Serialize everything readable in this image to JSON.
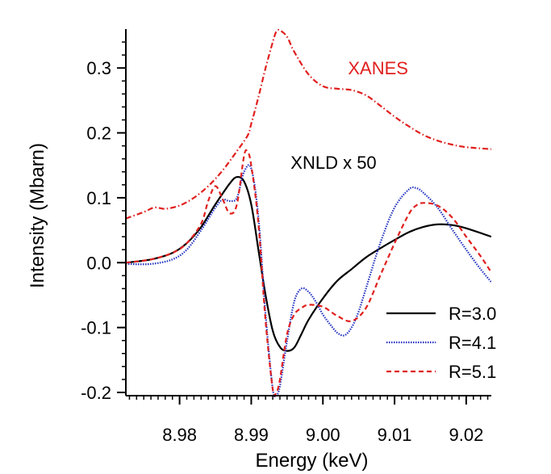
{
  "chart_data": {
    "type": "line",
    "xlabel": "Energy (keV)",
    "ylabel": "Intensity (Mbarn)",
    "xlim": [
      8.9725,
      9.0235
    ],
    "ylim": [
      -0.205,
      0.36
    ],
    "x_ticks": [
      8.98,
      8.99,
      9.0,
      9.01,
      9.02
    ],
    "x_tick_labels": [
      "8.98",
      "8.99",
      "9.00",
      "9.01",
      "9.02"
    ],
    "y_ticks": [
      0.3,
      0.2,
      0.1,
      0.0,
      -0.1,
      -0.2
    ],
    "y_tick_labels": [
      "0.3",
      "0.2",
      "0.1",
      "0.0",
      "-0.1",
      "-0.2"
    ],
    "grid": false,
    "legend_position": "bottom-right",
    "annotations": [
      {
        "text": "XANES",
        "x": 9.0035,
        "y": 0.29,
        "color": "#e0201e"
      },
      {
        "text": "XNLD x 50",
        "x": 8.9955,
        "y": 0.145,
        "color": "#000000"
      }
    ],
    "series": [
      {
        "name": "",
        "color": "#e0201e",
        "dash": "dashdot",
        "x": [
          8.9725,
          8.975,
          8.9765,
          8.978,
          8.98,
          8.982,
          8.984,
          8.986,
          8.988,
          8.9895,
          8.99,
          8.991,
          8.992,
          8.993,
          8.9935,
          8.994,
          8.995,
          8.996,
          8.998,
          9.0,
          9.002,
          9.004,
          9.006,
          9.008,
          9.01,
          9.012,
          9.014,
          9.016,
          9.018,
          9.02,
          9.0235
        ],
        "y": [
          0.068,
          0.078,
          0.085,
          0.083,
          0.088,
          0.1,
          0.118,
          0.142,
          0.172,
          0.196,
          0.214,
          0.255,
          0.3,
          0.34,
          0.356,
          0.358,
          0.348,
          0.325,
          0.29,
          0.272,
          0.268,
          0.266,
          0.258,
          0.242,
          0.225,
          0.21,
          0.197,
          0.188,
          0.182,
          0.178,
          0.175
        ]
      },
      {
        "name": "R=3.0",
        "color": "#000000",
        "dash": "solid",
        "x": [
          8.9725,
          8.976,
          8.979,
          8.981,
          8.983,
          8.985,
          8.987,
          8.988,
          8.989,
          8.99,
          8.991,
          8.992,
          8.993,
          8.994,
          8.995,
          8.996,
          8.997,
          8.998,
          9.0,
          9.002,
          9.004,
          9.006,
          9.008,
          9.01,
          9.012,
          9.014,
          9.016,
          9.018,
          9.02,
          9.0235
        ],
        "y": [
          0.0,
          0.005,
          0.015,
          0.03,
          0.055,
          0.09,
          0.122,
          0.132,
          0.125,
          0.09,
          0.02,
          -0.05,
          -0.105,
          -0.13,
          -0.136,
          -0.131,
          -0.11,
          -0.088,
          -0.055,
          -0.028,
          -0.01,
          0.008,
          0.022,
          0.035,
          0.047,
          0.055,
          0.059,
          0.058,
          0.053,
          0.04
        ]
      },
      {
        "name": "R=4.1",
        "color": "#1f2fbf",
        "dash": "dotted",
        "x": [
          8.9725,
          8.976,
          8.979,
          8.981,
          8.983,
          8.985,
          8.986,
          8.987,
          8.988,
          8.989,
          8.99,
          8.991,
          8.992,
          8.993,
          8.9935,
          8.994,
          8.995,
          8.996,
          8.997,
          8.998,
          8.999,
          9.0,
          9.001,
          9.002,
          9.003,
          9.004,
          9.005,
          9.006,
          9.008,
          9.01,
          9.012,
          9.013,
          9.014,
          9.016,
          9.018,
          9.02,
          9.022,
          9.0235
        ],
        "y": [
          -0.002,
          -0.002,
          0.005,
          0.02,
          0.05,
          0.085,
          0.097,
          0.095,
          0.1,
          0.14,
          0.145,
          0.07,
          -0.08,
          -0.195,
          -0.203,
          -0.19,
          -0.12,
          -0.06,
          -0.04,
          -0.045,
          -0.06,
          -0.08,
          -0.095,
          -0.108,
          -0.112,
          -0.1,
          -0.075,
          -0.04,
          0.03,
          0.085,
          0.113,
          0.115,
          0.108,
          0.085,
          0.052,
          0.02,
          -0.01,
          -0.03
        ]
      },
      {
        "name": "R=5.1",
        "color": "#e0201e",
        "dash": "dashed",
        "x": [
          8.9725,
          8.976,
          8.979,
          8.981,
          8.983,
          8.984,
          8.985,
          8.986,
          8.987,
          8.988,
          8.989,
          8.9895,
          8.99,
          8.991,
          8.992,
          8.993,
          8.9935,
          8.994,
          8.995,
          8.996,
          8.997,
          8.998,
          9.0,
          9.002,
          9.004,
          9.006,
          9.008,
          9.01,
          9.012,
          9.013,
          9.014,
          9.016,
          9.018,
          9.02,
          9.022,
          9.0235
        ],
        "y": [
          0.0,
          0.005,
          0.015,
          0.03,
          0.06,
          0.095,
          0.118,
          0.098,
          0.076,
          0.09,
          0.165,
          0.17,
          0.15,
          0.06,
          -0.09,
          -0.195,
          -0.2,
          -0.18,
          -0.11,
          -0.08,
          -0.07,
          -0.065,
          -0.068,
          -0.082,
          -0.09,
          -0.07,
          -0.02,
          0.03,
          0.075,
          0.088,
          0.092,
          0.088,
          0.07,
          0.04,
          0.01,
          -0.015
        ]
      }
    ]
  }
}
